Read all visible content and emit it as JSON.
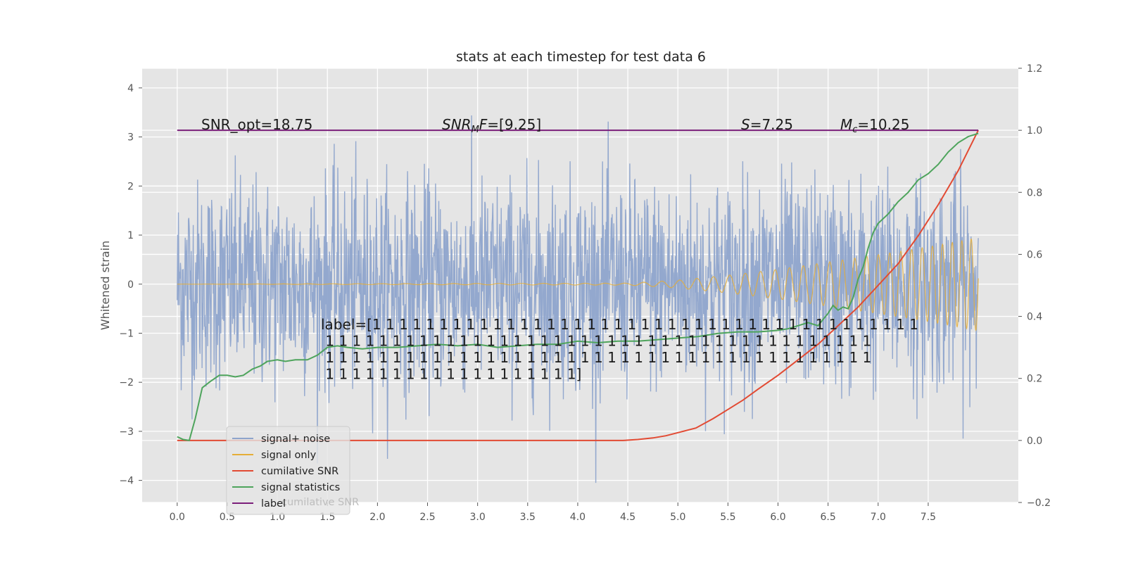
{
  "chart_data": {
    "type": "line",
    "title": "stats at each timestep for test data 6",
    "ylabel": "Whitened strain",
    "xlim": [
      -0.35,
      8.4
    ],
    "ylim": [
      -4.45,
      4.4
    ],
    "y2lim": [
      -0.2,
      1.2
    ],
    "x_ticks": [
      0.0,
      0.5,
      1.0,
      1.5,
      2.0,
      2.5,
      3.0,
      3.5,
      4.0,
      4.5,
      5.0,
      5.5,
      6.0,
      6.5,
      7.0,
      7.5
    ],
    "x_tick_labels": [
      "0.0",
      "0.5",
      "1.0",
      "1.5",
      "2.0",
      "2.5",
      "3.0",
      "3.5",
      "4.0",
      "4.5",
      "5.0",
      "5.5",
      "6.0",
      "6.5",
      "7.0",
      "7.5"
    ],
    "y_ticks": [
      -4,
      -3,
      -2,
      -1,
      0,
      1,
      2,
      3,
      4
    ],
    "y_tick_labels": [
      "−4",
      "−3",
      "−2",
      "−1",
      "0",
      "1",
      "2",
      "3",
      "4"
    ],
    "y2_ticks": [
      -0.2,
      0.0,
      0.2,
      0.4,
      0.6,
      0.8,
      1.0,
      1.2
    ],
    "y2_tick_labels": [
      "−0.2",
      "0.0",
      "0.2",
      "0.4",
      "0.6",
      "0.8",
      "1.0",
      "1.2"
    ],
    "grid": true,
    "legend_placement": "lower-left",
    "annotations": {
      "snr_opt": "SNR_opt=18.75",
      "snr_mf": "SNR_MF=[9.25]",
      "spin": "S=7.25",
      "chirp_mass": "M_c=10.25",
      "label_lines": [
        "label=[1 1 1 1 1 1 1 1 1 1 1 1 1 1 1 1 1 1 1 1 1 1 1 1 1 1 1 1 1 1 1 1 1 1 1 1 1 1 1 1 1",
        " 1 1 1 1 1 1 1 1 1 1 1 1 1 1 1 1 1 1 1 1 1 1 1 1 1 1 1 1 1 1 1 1 1 1 1 1 1 1 1 1 1",
        " 1 1 1 1 1 1 1 1 1 1 1 1 1 1 1 1 1 1 1 1 1 1 1 1 1 1 1 1 1 1 1 1 1 1 1 1 1 1 1 1 1",
        " 1 1 1 1 1 1 1 1 1 1 1 1 1 1 1 1 1 1 1]"
      ]
    },
    "series": [
      {
        "name": "signal+ noise",
        "axis": "left",
        "color": "#8ea4cc",
        "kind": "noise",
        "x_range": [
          0.0,
          8.0
        ],
        "std": 1.05,
        "y_extent": [
          -4.05,
          3.98
        ]
      },
      {
        "name": "signal only",
        "axis": "left",
        "color": "#e5ae38",
        "kind": "chirp",
        "x_range": [
          0.0,
          8.0
        ],
        "envelope": [
          [
            0.0,
            0.0
          ],
          [
            4.5,
            0.02
          ],
          [
            5.0,
            0.08
          ],
          [
            5.5,
            0.18
          ],
          [
            6.0,
            0.3
          ],
          [
            6.5,
            0.45
          ],
          [
            7.0,
            0.6
          ],
          [
            7.5,
            0.76
          ],
          [
            8.0,
            0.95
          ]
        ]
      },
      {
        "name": "cumilative SNR",
        "axis": "right",
        "color": "#e24a33",
        "x": [
          0.0,
          0.5,
          1.0,
          1.5,
          2.0,
          2.5,
          3.0,
          3.5,
          4.0,
          4.45,
          4.6,
          4.75,
          4.88,
          5.0,
          5.18,
          5.35,
          5.5,
          5.65,
          5.8,
          6.0,
          6.2,
          6.4,
          6.6,
          6.8,
          7.0,
          7.2,
          7.4,
          7.6,
          7.8,
          8.0
        ],
        "values": [
          0.0,
          0.0,
          0.0,
          0.0,
          0.0,
          0.0,
          0.0,
          0.0,
          0.0,
          0.0,
          0.003,
          0.008,
          0.015,
          0.025,
          0.04,
          0.07,
          0.1,
          0.13,
          0.165,
          0.21,
          0.26,
          0.31,
          0.37,
          0.43,
          0.5,
          0.57,
          0.66,
          0.76,
          0.87,
          1.0
        ]
      },
      {
        "name": "signal statistics",
        "axis": "right",
        "color": "#4ea45c",
        "x": [
          0.0,
          0.06,
          0.12,
          0.18,
          0.25,
          0.33,
          0.42,
          0.5,
          0.58,
          0.66,
          0.75,
          0.83,
          0.9,
          1.0,
          1.08,
          1.18,
          1.3,
          1.4,
          1.5,
          1.6,
          1.7,
          1.85,
          2.0,
          2.2,
          2.4,
          2.6,
          2.8,
          3.0,
          3.2,
          3.4,
          3.6,
          3.8,
          4.0,
          4.2,
          4.4,
          4.6,
          4.8,
          5.0,
          5.2,
          5.4,
          5.6,
          5.8,
          6.0,
          6.1,
          6.2,
          6.3,
          6.4,
          6.45,
          6.5,
          6.55,
          6.6,
          6.65,
          6.7,
          6.75,
          6.8,
          6.85,
          6.9,
          6.95,
          7.0,
          7.1,
          7.2,
          7.3,
          7.4,
          7.5,
          7.6,
          7.7,
          7.8,
          7.9,
          8.0
        ],
        "values": [
          0.012,
          0.003,
          0.0,
          0.07,
          0.17,
          0.19,
          0.21,
          0.21,
          0.205,
          0.21,
          0.23,
          0.24,
          0.255,
          0.26,
          0.255,
          0.26,
          0.26,
          0.275,
          0.3,
          0.305,
          0.3,
          0.295,
          0.3,
          0.3,
          0.305,
          0.31,
          0.305,
          0.31,
          0.3,
          0.305,
          0.31,
          0.31,
          0.32,
          0.315,
          0.32,
          0.32,
          0.325,
          0.33,
          0.335,
          0.345,
          0.35,
          0.35,
          0.355,
          0.36,
          0.37,
          0.38,
          0.37,
          0.39,
          0.41,
          0.435,
          0.42,
          0.43,
          0.425,
          0.46,
          0.52,
          0.56,
          0.62,
          0.67,
          0.7,
          0.73,
          0.77,
          0.8,
          0.84,
          0.86,
          0.89,
          0.93,
          0.96,
          0.98,
          0.99
        ]
      },
      {
        "name": "label",
        "axis": "right",
        "color": "#7b1f7a",
        "x": [
          0.0,
          8.0
        ],
        "values": [
          1.0,
          1.0
        ]
      }
    ],
    "ghost_legend_text": "cumilative SNR"
  }
}
